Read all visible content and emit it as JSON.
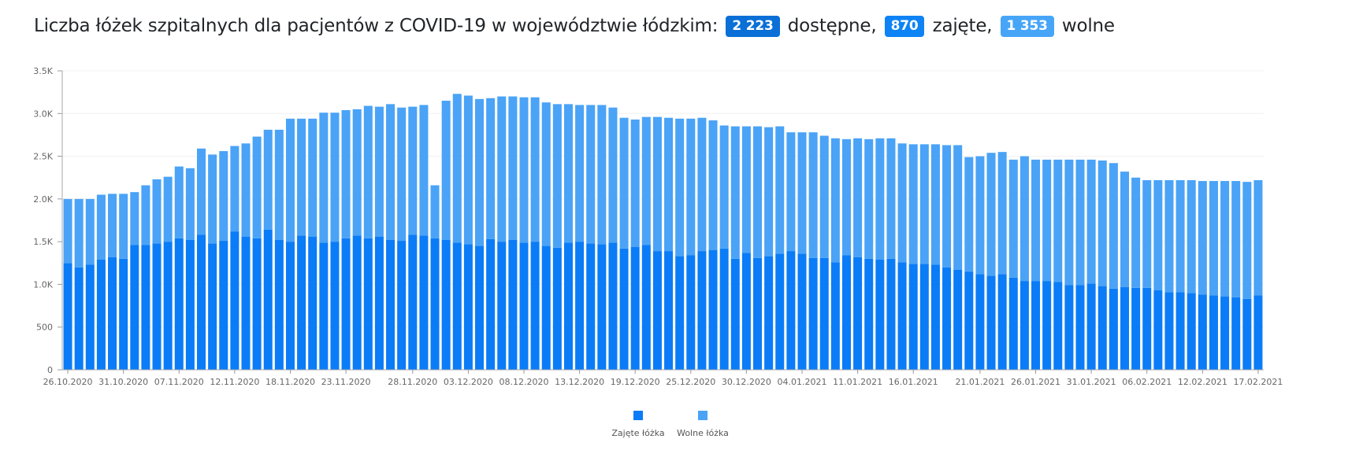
{
  "title": {
    "prefix": "Liczba łóżek szpitalnych dla pacjentów z COVID-19 w województwie łódzkim:",
    "available_value": "2 223",
    "available_label": "dostępne,",
    "occupied_value": "870",
    "occupied_label": "zajęte,",
    "free_value": "1 353",
    "free_label": "wolne"
  },
  "colors": {
    "occupied": "#0a7cf7",
    "free": "#4aa3f6",
    "badge_dark": "#0a6fd6",
    "badge_mid": "#0d83f5",
    "badge_light": "#47a5f8"
  },
  "chart_data": {
    "type": "bar",
    "stacked": true,
    "xlabel": "",
    "ylabel": "",
    "ylim": [
      0,
      3500
    ],
    "y_ticks": [
      0,
      500,
      1000,
      1500,
      2000,
      2500,
      3000,
      3500
    ],
    "y_tick_labels": [
      "0",
      "500",
      "1.0K",
      "1.5K",
      "2.0K",
      "2.5K",
      "3.0K",
      "3.5K"
    ],
    "x_tick_labels": [
      "26.10.2020",
      "31.10.2020",
      "07.11.2020",
      "12.11.2020",
      "18.11.2020",
      "23.11.2020",
      "28.11.2020",
      "03.12.2020",
      "08.12.2020",
      "13.12.2020",
      "19.12.2020",
      "25.12.2020",
      "30.12.2020",
      "04.01.2021",
      "11.01.2021",
      "16.01.2021",
      "21.01.2021",
      "26.01.2021",
      "31.01.2021",
      "06.02.2021",
      "12.02.2021",
      "17.02.2021"
    ],
    "grid": true,
    "legend_position": "bottom",
    "series": [
      {
        "name": "Zajęte łóżka",
        "values": [
          1250,
          1200,
          1230,
          1290,
          1320,
          1300,
          1460,
          1460,
          1480,
          1500,
          1540,
          1520,
          1580,
          1480,
          1510,
          1620,
          1560,
          1540,
          1640,
          1520,
          1500,
          1570,
          1560,
          1490,
          1500,
          1540,
          1570,
          1540,
          1560,
          1520,
          1510,
          1580,
          1570,
          1540,
          1520,
          1490,
          1470,
          1450,
          1530,
          1500,
          1520,
          1490,
          1500,
          1450,
          1430,
          1490,
          1500,
          1480,
          1470,
          1490,
          1420,
          1440,
          1460,
          1390,
          1390,
          1330,
          1340,
          1390,
          1400,
          1420,
          1300,
          1370,
          1310,
          1330,
          1360,
          1390,
          1360,
          1310,
          1310,
          1260,
          1340,
          1320,
          1300,
          1290,
          1300,
          1260,
          1240,
          1240,
          1230,
          1200,
          1170,
          1150,
          1120,
          1100,
          1120,
          1080,
          1040,
          1040,
          1040,
          1030,
          990,
          990,
          1010,
          980,
          950,
          970,
          960,
          960,
          930,
          910,
          910,
          900,
          880,
          870,
          860,
          850,
          830,
          870
        ]
      },
      {
        "name": "Wolne łóżka",
        "values": [
          750,
          800,
          770,
          760,
          740,
          760,
          620,
          700,
          750,
          760,
          840,
          840,
          1010,
          1040,
          1050,
          1000,
          1090,
          1190,
          1170,
          1290,
          1440,
          1370,
          1380,
          1520,
          1510,
          1500,
          1480,
          1550,
          1520,
          1590,
          1560,
          1500,
          1530,
          620,
          1630,
          1740,
          1740,
          1720,
          1650,
          1700,
          1680,
          1700,
          1690,
          1680,
          1680,
          1620,
          1600,
          1620,
          1630,
          1580,
          1530,
          1490,
          1500,
          1570,
          1560,
          1610,
          1600,
          1560,
          1520,
          1440,
          1550,
          1480,
          1540,
          1510,
          1490,
          1390,
          1420,
          1470,
          1430,
          1450,
          1360,
          1390,
          1400,
          1420,
          1410,
          1390,
          1400,
          1400,
          1410,
          1430,
          1460,
          1340,
          1380,
          1440,
          1430,
          1380,
          1460,
          1420,
          1420,
          1430,
          1470,
          1470,
          1450,
          1470,
          1470,
          1350,
          1290,
          1260,
          1290,
          1310,
          1310,
          1320,
          1330,
          1340,
          1350,
          1360,
          1370,
          1350
        ]
      }
    ]
  }
}
